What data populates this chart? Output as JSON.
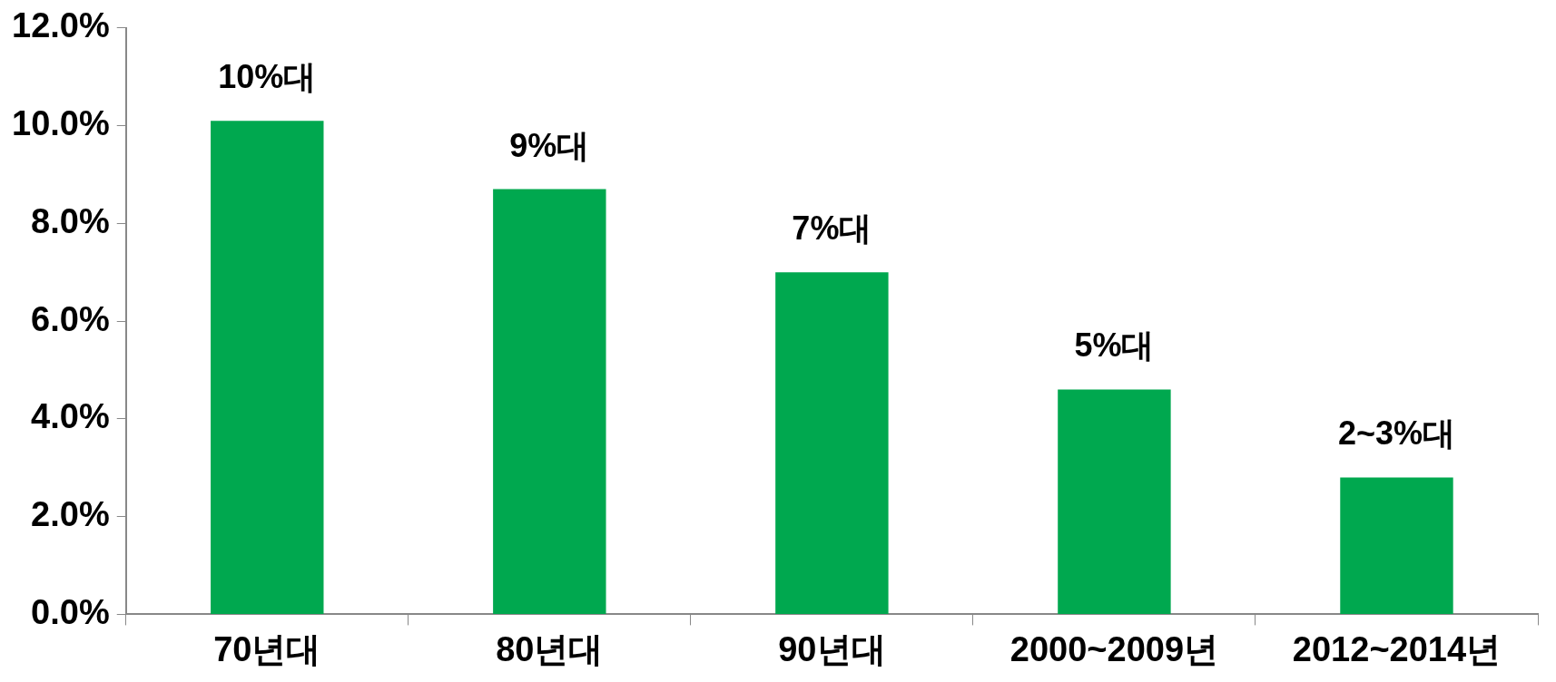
{
  "chart_data": {
    "type": "bar",
    "categories": [
      "70년대",
      "80년대",
      "90년대",
      "2000~2009년",
      "2012~2014년"
    ],
    "values": [
      10.1,
      8.7,
      7.0,
      4.6,
      2.8
    ],
    "value_labels": [
      "10%대",
      "9%대",
      "7%대",
      "5%대",
      "2~3%대"
    ],
    "color": "#00a84f",
    "ylim": [
      0,
      12
    ],
    "yticks": [
      {
        "value": 0,
        "label": "0.0%"
      },
      {
        "value": 2,
        "label": "2.0%"
      },
      {
        "value": 4,
        "label": "4.0%"
      },
      {
        "value": 6,
        "label": "6.0%"
      },
      {
        "value": 8,
        "label": "8.0%"
      },
      {
        "value": 10,
        "label": "10.0%"
      },
      {
        "value": 12,
        "label": "12.0%"
      }
    ],
    "grid": false,
    "legend": false
  }
}
